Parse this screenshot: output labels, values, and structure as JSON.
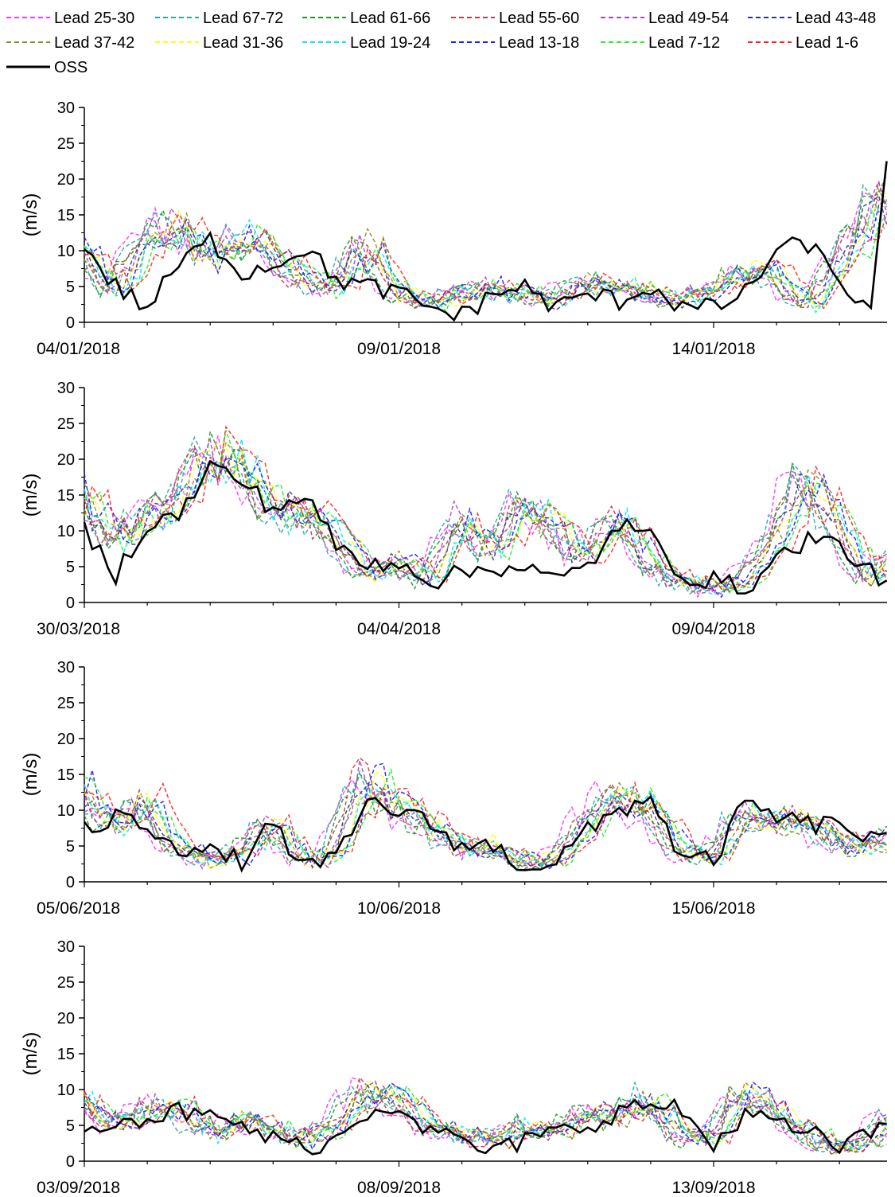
{
  "legend": [
    {
      "label": "Lead 25-30",
      "color": "#ff33ff",
      "dash": "dashed"
    },
    {
      "label": "Lead 67-72",
      "color": "#2aa6a6",
      "dash": "dashed"
    },
    {
      "label": "Lead 61-66",
      "color": "#1f9a1f",
      "dash": "dashed"
    },
    {
      "label": "Lead 55-60",
      "color": "#b84040",
      "dash": "dashed"
    },
    {
      "label": "Lead 49-54",
      "color": "#aa44cc",
      "dash": "dashed"
    },
    {
      "label": "Lead 43-48",
      "color": "#2a3a8a",
      "dash": "dashed"
    },
    {
      "label": "Lead 37-42",
      "color": "#8f8f2a",
      "dash": "dashed"
    },
    {
      "label": "Lead 31-36",
      "color": "#ffff00",
      "dash": "dashed"
    },
    {
      "label": "Lead 19-24",
      "color": "#00e5ff",
      "dash": "dashed"
    },
    {
      "label": "Lead 13-18",
      "color": "#1a1aff",
      "dash": "dashed"
    },
    {
      "label": "Lead 7-12",
      "color": "#22ee22",
      "dash": "dashed"
    },
    {
      "label": "Lead 1-6",
      "color": "#ff2222",
      "dash": "dashed"
    },
    {
      "label": "OSS",
      "color": "#000000",
      "dash": "solid"
    }
  ],
  "chart_data": [
    {
      "type": "line",
      "ylabel": "(m/s)",
      "ylim": [
        0,
        30
      ],
      "yticks": [
        0,
        5,
        10,
        15,
        20,
        25,
        30
      ],
      "xlabels": [
        "04/01/2018",
        "09/01/2018",
        "14/01/2018"
      ],
      "xrange_days": [
        "04/01/2018",
        "16/01/2018 18:00"
      ],
      "series": [
        {
          "name": "OSS",
          "x": [
            0,
            0.5,
            1,
            1.5,
            2,
            2.5,
            3,
            3.5,
            4,
            4.5,
            5,
            5.5,
            6,
            6.5,
            7,
            7.5,
            8,
            8.5,
            9,
            9.5,
            10,
            10.5,
            11,
            11.5,
            12,
            12.5,
            12.75
          ],
          "values": [
            10.5,
            5,
            2,
            8,
            11.5,
            7,
            8,
            10.5,
            6,
            5,
            4,
            2,
            1,
            4,
            5,
            2,
            4,
            3,
            5,
            2,
            2,
            4,
            10,
            11,
            6,
            1,
            21.5
          ]
        },
        {
          "name": "Lead 1-6",
          "x": [
            0,
            0.5,
            1,
            1.5,
            2,
            2.5,
            3,
            3.5,
            4,
            4.5,
            5,
            5.5,
            6,
            6.5,
            7,
            7.5,
            8,
            8.5,
            9,
            9.5,
            10,
            10.5,
            11,
            11.5,
            12,
            12.5,
            12.75
          ],
          "values": [
            10,
            4,
            12,
            14,
            9,
            12,
            10,
            6,
            5,
            11,
            4,
            3,
            4,
            5,
            4,
            3,
            6,
            5,
            4,
            3,
            5,
            7,
            7,
            2,
            8,
            15,
            18
          ]
        }
      ]
    },
    {
      "type": "line",
      "ylabel": "(m/s)",
      "ylim": [
        0,
        30
      ],
      "yticks": [
        0,
        5,
        10,
        15,
        20,
        25,
        30
      ],
      "xlabels": [
        "30/03/2018",
        "04/04/2018",
        "09/04/2018"
      ],
      "xrange_days": [
        "30/03/2018",
        "11/04/2018 18:00"
      ],
      "series": [
        {
          "name": "OSS",
          "x": [
            0,
            0.5,
            1,
            1.5,
            2,
            2.5,
            3,
            3.5,
            4,
            4.5,
            5,
            5.5,
            6,
            6.5,
            7,
            7.5,
            8,
            8.5,
            9,
            9.5,
            10,
            10.5,
            11,
            11.5,
            12,
            12.5,
            12.75
          ],
          "values": [
            10,
            4,
            11,
            12,
            19,
            17,
            13,
            15,
            8,
            5,
            6,
            3,
            4,
            5,
            5,
            3,
            5,
            11,
            9,
            4,
            3,
            2,
            6,
            9,
            8,
            4,
            3.5
          ]
        },
        {
          "name": "Lead 1-6",
          "x": [
            0,
            0.5,
            1,
            1.5,
            2,
            2.5,
            3,
            3.5,
            4,
            4.5,
            5,
            5.5,
            6,
            6.5,
            7,
            7.5,
            8,
            8.5,
            9,
            9.5,
            10,
            10.5,
            11,
            11.5,
            12,
            12.5,
            12.75
          ],
          "values": [
            15,
            9,
            12,
            14,
            21,
            20,
            13,
            13,
            10,
            4,
            6,
            3,
            12,
            7,
            14,
            11,
            6,
            12,
            6,
            3,
            2,
            3,
            9,
            18,
            11,
            3,
            6
          ]
        }
      ]
    },
    {
      "type": "line",
      "ylabel": "(m/s)",
      "ylim": [
        0,
        30
      ],
      "yticks": [
        0,
        5,
        10,
        15,
        20,
        25,
        30
      ],
      "xlabels": [
        "05/06/2018",
        "10/06/2018",
        "15/06/2018"
      ],
      "xrange_days": [
        "05/06/2018",
        "17/06/2018 18:00"
      ],
      "series": [
        {
          "name": "OSS",
          "x": [
            0,
            0.5,
            1,
            1.5,
            2,
            2.5,
            3,
            3.5,
            4,
            4.5,
            5,
            5.5,
            6,
            6.5,
            7,
            7.5,
            8,
            8.5,
            9,
            9.5,
            10,
            10.5,
            11,
            11.5,
            12,
            12.5,
            12.75
          ],
          "values": [
            7,
            9,
            8,
            5,
            4,
            3,
            8,
            2,
            3,
            11,
            10,
            8,
            5,
            5,
            2,
            3,
            7,
            10,
            12,
            3,
            3,
            11,
            9,
            8,
            8,
            6,
            5.5
          ]
        },
        {
          "name": "Lead 1-6",
          "x": [
            0,
            0.5,
            1,
            1.5,
            2,
            2.5,
            3,
            3.5,
            4,
            4.5,
            5,
            5.5,
            6,
            6.5,
            7,
            7.5,
            8,
            8.5,
            9,
            9.5,
            10,
            10.5,
            11,
            11.5,
            12,
            12.5,
            12.75
          ],
          "values": [
            13,
            8,
            11,
            5,
            3,
            4,
            8,
            3,
            4,
            15,
            11,
            8,
            5,
            5,
            3,
            3,
            8,
            13,
            10,
            5,
            3,
            10,
            8,
            9,
            6,
            5,
            6
          ]
        }
      ]
    },
    {
      "type": "line",
      "ylabel": "(m/s)",
      "ylim": [
        0,
        30
      ],
      "yticks": [
        0,
        5,
        10,
        15,
        20,
        25,
        30
      ],
      "xlabels": [
        "03/09/2018",
        "08/09/2018",
        "13/09/2018"
      ],
      "xrange_days": [
        "03/09/2018",
        "15/09/2018 18:00"
      ],
      "series": [
        {
          "name": "OSS",
          "x": [
            0,
            0.5,
            1,
            1.5,
            2,
            2.5,
            3,
            3.5,
            4,
            4.5,
            5,
            5.5,
            6,
            6.5,
            7,
            7.5,
            8,
            8.5,
            9,
            9.5,
            10,
            10.5,
            11,
            11.5,
            12,
            12.5,
            12.75
          ],
          "values": [
            5,
            6,
            6,
            7,
            6,
            5,
            3,
            2,
            3,
            7,
            8,
            4,
            3,
            1,
            3,
            4,
            5,
            7,
            8,
            7,
            2,
            7,
            5,
            4,
            2,
            4,
            4
          ]
        },
        {
          "name": "Lead 1-6",
          "x": [
            0,
            0.5,
            1,
            1.5,
            2,
            2.5,
            3,
            3.5,
            4,
            4.5,
            5,
            5.5,
            6,
            6.5,
            7,
            7.5,
            8,
            8.5,
            9,
            9.5,
            10,
            10.5,
            11,
            11.5,
            12,
            12.5,
            12.75
          ],
          "values": [
            9,
            5,
            7,
            8,
            4,
            6,
            5,
            3,
            5,
            10,
            9,
            5,
            4,
            3,
            5,
            4,
            7,
            6,
            9,
            4,
            3,
            10,
            7,
            4,
            2,
            3,
            6
          ]
        }
      ]
    }
  ]
}
